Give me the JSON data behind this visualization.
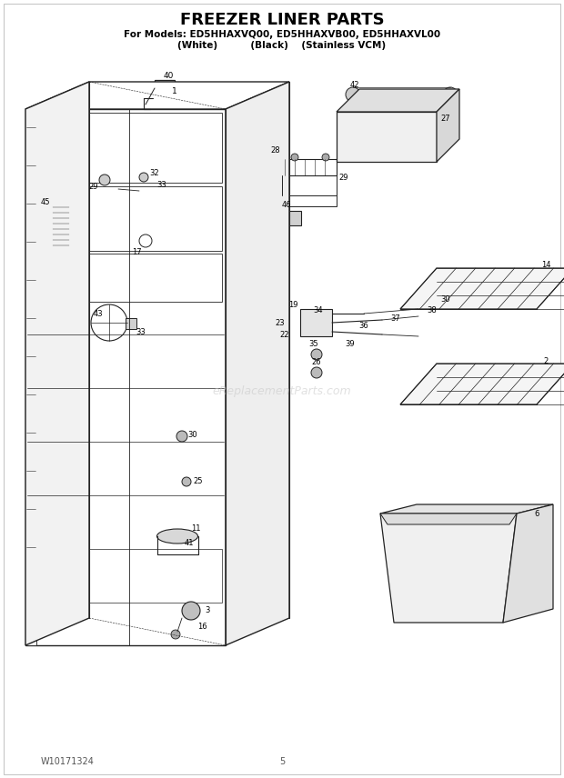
{
  "title": "FREEZER LINER PARTS",
  "subtitle1": "For Models: ED5HHAXVQ00, ED5HHAXVB00, ED5HHAXVL00",
  "subtitle2": "(White)          (Black)    (Stainless VCM)",
  "footer_left": "W10171324",
  "footer_center": "5",
  "bg": "#ffffff",
  "lc": "#222222",
  "watermark": "eReplacementParts.com",
  "figsize": [
    6.2,
    8.56
  ],
  "dpi": 100
}
